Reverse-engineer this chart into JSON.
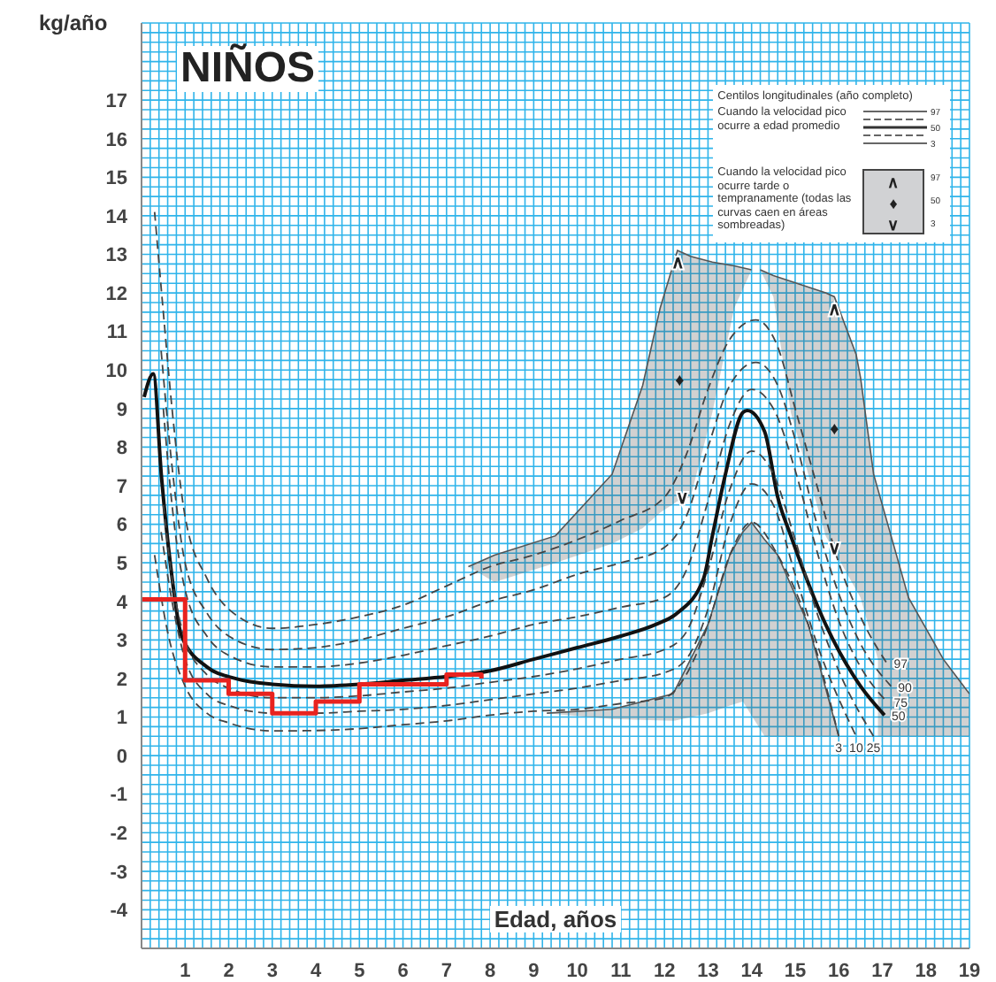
{
  "chart_data": {
    "type": "line",
    "title": "NIÑOS",
    "ylabel": "kg/año",
    "xlabel": "Edad, años",
    "xlim": [
      0,
      19
    ],
    "xticks": [
      1,
      2,
      3,
      4,
      5,
      6,
      7,
      8,
      9,
      10,
      11,
      12,
      13,
      14,
      15,
      16,
      17,
      18,
      19
    ],
    "ylim": [
      -5,
      19
    ],
    "yticks": [
      -4,
      -3,
      -2,
      -1,
      0,
      1,
      2,
      3,
      4,
      5,
      6,
      7,
      8,
      9,
      10,
      11,
      12,
      13,
      14,
      15,
      16,
      17
    ],
    "grid": true,
    "marker": "none",
    "legend": false,
    "series": [
      {
        "type": "line",
        "color": "#555555",
        "line_style": "solid",
        "x": [
          7.5,
          8.1,
          9.5,
          10.8,
          11.5,
          11.9,
          12.3,
          12.6,
          13.1,
          13.6,
          14.0
        ],
        "lower": [
          4.9,
          4.5,
          5.0,
          5.5,
          5.9,
          6.3,
          6.6,
          6.7,
          8.9,
          11.6,
          12.6
        ],
        "upper": [
          4.9,
          5.2,
          5.7,
          7.3,
          9.6,
          11.6,
          13.1,
          12.95,
          12.8,
          12.7,
          12.6
        ],
        "values": [
          4.9,
          5.2,
          5.7,
          7.3,
          9.6,
          11.6,
          13.1,
          12.95,
          12.8,
          12.7,
          12.6
        ]
      },
      {
        "type": "line",
        "color": "#555555",
        "line_style": "solid",
        "x": [
          14.2,
          14.5,
          14.9,
          15.7,
          15.9,
          16.4,
          16.5,
          16.8,
          16.9,
          16.9,
          17.6,
          18.4,
          19
        ],
        "lower": [
          12.6,
          11.9,
          8.9,
          5.7,
          5.3,
          4.3,
          4.1,
          2.9,
          2.5,
          0.5,
          0.5,
          0.5,
          0.5
        ],
        "upper": [
          12.6,
          12.45,
          12.3,
          12.0,
          11.9,
          10.4,
          9.8,
          7.3,
          6.9,
          6.9,
          4.1,
          2.5,
          1.6
        ],
        "values": [
          12.6,
          12.45,
          12.3,
          12.0,
          11.9,
          10.4,
          9.8,
          7.3,
          6.9,
          6.9,
          4.1,
          2.5,
          1.6
        ]
      },
      {
        "type": "line",
        "color": "#555555",
        "line_style": "solid",
        "x": [
          9.3,
          10.8,
          12.2,
          13.0,
          13.5,
          13.8,
          14.0,
          14.3,
          14.6,
          15.3,
          16.0
        ],
        "lower": [
          1.1,
          0.95,
          0.9,
          1.1,
          1.3,
          1.4,
          1.04,
          0.5,
          0.5,
          0.5,
          0.5
        ],
        "upper": [
          1.1,
          1.2,
          1.6,
          3.4,
          5.2,
          5.8,
          6.05,
          5.6,
          5.2,
          3.4,
          0.5
        ],
        "values": [
          1.1,
          1.2,
          1.6,
          3.4,
          5.2,
          5.8,
          6.05,
          5.6,
          5.2,
          3.4,
          0.5
        ]
      },
      {
        "name": "97",
        "color": "#444444",
        "line_style": "dashed",
        "x": [
          0.3,
          0.5,
          0.7,
          1,
          1.5,
          2,
          3,
          4,
          5,
          6,
          7,
          8,
          9,
          10,
          11,
          12,
          12.5,
          13,
          13.5,
          14.1,
          14.6,
          15,
          15.5,
          16,
          16.5,
          17.1
        ],
        "values": [
          14.1,
          11.5,
          9,
          6.2,
          4.6,
          3.8,
          3.3,
          3.4,
          3.6,
          3.9,
          4.4,
          4.9,
          5.2,
          5.6,
          6.1,
          6.7,
          7.8,
          9.5,
          10.8,
          11.3,
          10.6,
          9.0,
          7.0,
          5.0,
          3.6,
          2.4
        ]
      },
      {
        "name": "90",
        "color": "#444444",
        "line_style": "dashed",
        "x": [
          0.45,
          0.7,
          1,
          1.5,
          2,
          3,
          4,
          5,
          6,
          7,
          8,
          9,
          10,
          11,
          12,
          12.5,
          13,
          13.5,
          14.1,
          14.6,
          15,
          15.5,
          16,
          16.5,
          17.2
        ],
        "values": [
          10.5,
          7.5,
          5.0,
          3.7,
          3.1,
          2.75,
          2.8,
          3.0,
          3.3,
          3.6,
          4.0,
          4.3,
          4.7,
          5.0,
          5.4,
          6.2,
          8.0,
          9.6,
          10.2,
          9.6,
          8.2,
          6.0,
          4.2,
          2.9,
          1.8
        ]
      },
      {
        "name": "75",
        "color": "#444444",
        "line_style": "dashed",
        "x": [
          0.5,
          0.7,
          1,
          1.5,
          2,
          3,
          4,
          5,
          6,
          7,
          8,
          9,
          10,
          11,
          12,
          12.5,
          13,
          13.5,
          14.0,
          14.5,
          15,
          15.5,
          16,
          16.5,
          17.1
        ],
        "values": [
          9,
          6.5,
          4.3,
          3.1,
          2.6,
          2.3,
          2.3,
          2.4,
          2.6,
          2.85,
          3.1,
          3.4,
          3.6,
          3.85,
          4.1,
          4.8,
          6.6,
          8.6,
          9.5,
          9.0,
          7.4,
          5.3,
          3.5,
          2.3,
          1.4
        ]
      },
      {
        "name": "50",
        "color": "#111111",
        "line_style": "solid",
        "x": [
          0.06,
          0.27,
          0.46,
          0.67,
          0.92,
          1.5,
          2.15,
          3,
          4,
          5,
          6,
          7,
          8,
          9,
          10,
          11,
          11.8,
          12.3,
          12.9,
          13.1,
          13.4,
          13.8,
          13.9,
          14.3,
          14.6,
          14.9,
          15.7,
          16.5,
          17.05
        ],
        "values": [
          9.3,
          9.9,
          7.2,
          4.9,
          3.1,
          2.3,
          2.0,
          1.85,
          1.8,
          1.85,
          1.95,
          2.05,
          2.2,
          2.5,
          2.8,
          3.1,
          3.4,
          3.7,
          4.6,
          5.7,
          7.3,
          8.9,
          8.95,
          8.4,
          6.7,
          5.7,
          3.4,
          1.8,
          1.05
        ]
      },
      {
        "name": "25",
        "color": "#444444",
        "line_style": "dashed",
        "x": [
          0.5,
          0.7,
          1,
          1.5,
          2,
          3,
          4,
          5,
          6,
          7,
          8,
          9,
          10,
          11,
          12,
          12.5,
          13,
          13.5,
          14.0,
          14.5,
          15,
          15.5,
          16,
          16.8
        ],
        "values": [
          6.5,
          4.6,
          3.0,
          2.1,
          1.75,
          1.5,
          1.5,
          1.55,
          1.65,
          1.75,
          1.9,
          2.05,
          2.25,
          2.5,
          2.75,
          3.2,
          4.8,
          6.9,
          7.9,
          7.3,
          5.6,
          3.7,
          2.2,
          0.5
        ]
      },
      {
        "name": "10",
        "color": "#444444",
        "line_style": "dashed",
        "x": [
          0.45,
          0.7,
          1,
          1.5,
          2,
          3,
          4,
          5,
          6,
          7,
          8,
          9,
          10,
          11,
          12,
          12.5,
          13,
          13.5,
          14.0,
          14.5,
          15,
          15.5,
          16.4
        ],
        "values": [
          5.8,
          4.0,
          2.5,
          1.6,
          1.3,
          1.1,
          1.1,
          1.15,
          1.2,
          1.3,
          1.45,
          1.6,
          1.75,
          1.95,
          2.15,
          2.5,
          3.8,
          6.0,
          7.05,
          6.5,
          4.7,
          2.9,
          0.5
        ]
      },
      {
        "name": "3",
        "color": "#444444",
        "line_style": "dashed",
        "x": [
          0.3,
          0.6,
          1,
          1.5,
          2,
          3,
          4,
          5,
          6,
          7,
          8,
          9,
          10,
          11,
          12,
          12.5,
          13,
          13.5,
          14.0,
          14.6,
          15.3,
          16.0
        ],
        "values": [
          5.2,
          3.2,
          1.8,
          1.1,
          0.85,
          0.64,
          0.65,
          0.7,
          0.8,
          0.9,
          1.05,
          1.15,
          1.2,
          1.35,
          1.5,
          2.1,
          3.4,
          5.2,
          6.05,
          5.2,
          3.4,
          0.5
        ]
      },
      {
        "type": "step",
        "color": "#e8231f",
        "line_style": "solid",
        "x": [
          0,
          1,
          2,
          3,
          4,
          5,
          7,
          7.8
        ],
        "values": [
          4.05,
          1.95,
          1.6,
          1.1,
          1.4,
          1.85,
          2.1,
          2.0
        ]
      }
    ],
    "annotations": [
      "Centilos longitudinales (año completo)",
      "Cuando la velocidad pico ocurre a edad promedio",
      "Cuando la velocidad pico ocurre tarde o tempranamente (todas las curvas caen en áreas sombreadas)",
      "♦",
      "♦",
      {
        "text": "∧",
        "x": 12.3,
        "y": 12.8
      },
      {
        "text": "∨",
        "x": 12.4,
        "y": 6.7
      },
      {
        "text": "∧",
        "x": 15.9,
        "y": 11.6
      },
      {
        "text": "∨",
        "x": 15.9,
        "y": 5.4
      }
    ]
  }
}
